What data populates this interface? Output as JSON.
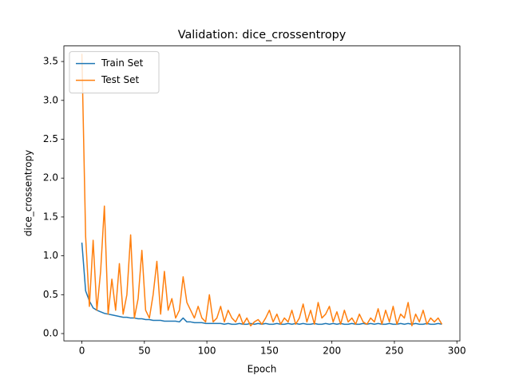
{
  "chart_data": {
    "type": "line",
    "title": "Validation: dice_crossentropy",
    "xlabel": "Epoch",
    "ylabel": "dice_crossentropy",
    "x": [
      0,
      3,
      6,
      9,
      12,
      15,
      18,
      21,
      24,
      27,
      30,
      33,
      36,
      39,
      42,
      45,
      48,
      51,
      54,
      57,
      60,
      63,
      66,
      69,
      72,
      75,
      78,
      81,
      84,
      87,
      90,
      93,
      96,
      99,
      102,
      105,
      108,
      111,
      114,
      117,
      120,
      123,
      126,
      129,
      132,
      135,
      138,
      141,
      144,
      147,
      150,
      153,
      156,
      159,
      162,
      165,
      168,
      171,
      174,
      177,
      180,
      183,
      186,
      189,
      192,
      195,
      198,
      201,
      204,
      207,
      210,
      213,
      216,
      219,
      222,
      225,
      228,
      231,
      234,
      237,
      240,
      243,
      246,
      249,
      252,
      255,
      258,
      261,
      264,
      267,
      270,
      273,
      276,
      279,
      282,
      285,
      288
    ],
    "series": [
      {
        "name": "Train Set",
        "color": "#1f77b4",
        "values": [
          1.17,
          0.55,
          0.42,
          0.33,
          0.3,
          0.28,
          0.26,
          0.25,
          0.24,
          0.23,
          0.22,
          0.21,
          0.21,
          0.2,
          0.2,
          0.19,
          0.19,
          0.18,
          0.18,
          0.17,
          0.17,
          0.17,
          0.16,
          0.16,
          0.16,
          0.16,
          0.15,
          0.2,
          0.15,
          0.15,
          0.14,
          0.14,
          0.14,
          0.13,
          0.13,
          0.13,
          0.13,
          0.13,
          0.12,
          0.13,
          0.12,
          0.12,
          0.13,
          0.12,
          0.12,
          0.13,
          0.12,
          0.13,
          0.12,
          0.13,
          0.12,
          0.12,
          0.13,
          0.12,
          0.12,
          0.13,
          0.12,
          0.13,
          0.12,
          0.13,
          0.12,
          0.12,
          0.13,
          0.12,
          0.12,
          0.13,
          0.12,
          0.13,
          0.12,
          0.13,
          0.12,
          0.12,
          0.13,
          0.12,
          0.12,
          0.13,
          0.12,
          0.13,
          0.12,
          0.13,
          0.12,
          0.12,
          0.13,
          0.12,
          0.12,
          0.13,
          0.12,
          0.13,
          0.12,
          0.13,
          0.12,
          0.12,
          0.13,
          0.12,
          0.12,
          0.13,
          0.12
        ]
      },
      {
        "name": "Test Set",
        "color": "#ff7f0e",
        "values": [
          3.6,
          1.25,
          0.35,
          1.2,
          0.3,
          0.8,
          1.64,
          0.25,
          0.7,
          0.3,
          0.9,
          0.25,
          0.5,
          1.27,
          0.2,
          0.45,
          1.07,
          0.3,
          0.2,
          0.5,
          0.93,
          0.25,
          0.8,
          0.3,
          0.45,
          0.2,
          0.3,
          0.73,
          0.4,
          0.3,
          0.2,
          0.35,
          0.2,
          0.15,
          0.5,
          0.15,
          0.2,
          0.35,
          0.15,
          0.3,
          0.2,
          0.15,
          0.25,
          0.12,
          0.2,
          0.1,
          0.15,
          0.18,
          0.12,
          0.2,
          0.3,
          0.15,
          0.25,
          0.12,
          0.2,
          0.15,
          0.3,
          0.12,
          0.2,
          0.38,
          0.15,
          0.3,
          0.12,
          0.4,
          0.2,
          0.25,
          0.35,
          0.15,
          0.28,
          0.12,
          0.3,
          0.15,
          0.2,
          0.12,
          0.25,
          0.15,
          0.12,
          0.2,
          0.15,
          0.32,
          0.12,
          0.3,
          0.15,
          0.35,
          0.12,
          0.25,
          0.2,
          0.4,
          0.1,
          0.25,
          0.15,
          0.3,
          0.12,
          0.2,
          0.15,
          0.2,
          0.12
        ]
      }
    ],
    "xlim": [
      -14.4,
      302.4
    ],
    "xticks": [
      0,
      50,
      100,
      150,
      200,
      250,
      300
    ],
    "ylim": [
      -0.094,
      3.7
    ],
    "yticks": [
      {
        "value": 0,
        "label": "0.0"
      },
      {
        "value": 0.5,
        "label": "0.5"
      },
      {
        "value": 1,
        "label": "1.0"
      },
      {
        "value": 1.5,
        "label": "1.5"
      },
      {
        "value": 2,
        "label": "2.0"
      },
      {
        "value": 2.5,
        "label": "2.5"
      },
      {
        "value": 3,
        "label": "3.0"
      },
      {
        "value": 3.5,
        "label": "3.5"
      }
    ],
    "legend": "upper left",
    "grid": false
  }
}
